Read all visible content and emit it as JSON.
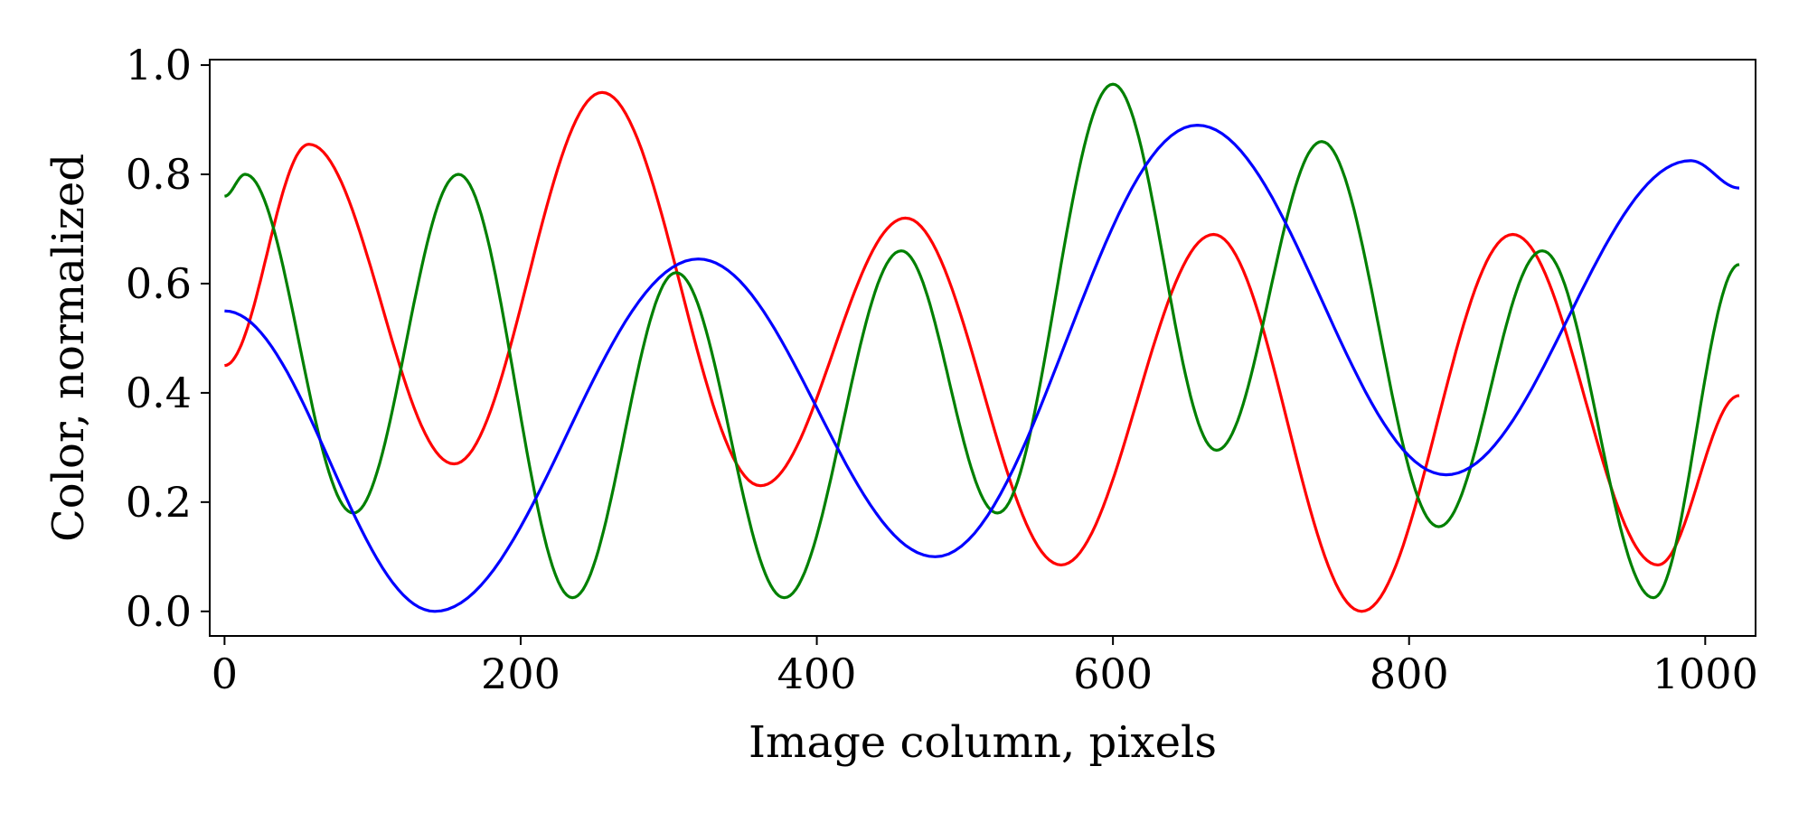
{
  "chart_data": {
    "type": "line",
    "title": "",
    "xlabel": "Image column, pixels",
    "ylabel": "Color, normalized",
    "xlim": [
      -10,
      1034
    ],
    "ylim": [
      -0.045,
      1.01
    ],
    "grid": false,
    "xticks": [
      0,
      200,
      400,
      600,
      800,
      1000
    ],
    "yticks": [
      0.0,
      0.2,
      0.4,
      0.6,
      0.8,
      1.0
    ],
    "xtick_labels": [
      "0",
      "200",
      "400",
      "600",
      "800",
      "1000"
    ],
    "ytick_labels": [
      "0.0",
      "0.2",
      "0.4",
      "0.6",
      "0.8",
      "1.0"
    ],
    "series": [
      {
        "color": "#ff0000",
        "x": [
          0,
          57,
          155,
          255,
          362,
          460,
          565,
          668,
          768,
          870,
          968,
          1023
        ],
        "y": [
          0.45,
          0.855,
          0.27,
          0.95,
          0.23,
          0.72,
          0.085,
          0.69,
          0.0,
          0.69,
          0.085,
          0.395
        ]
      },
      {
        "color": "#008000",
        "x": [
          0,
          14,
          87,
          158,
          235,
          305,
          378,
          457,
          522,
          600,
          670,
          741,
          820,
          890,
          965,
          1023
        ],
        "y": [
          0.76,
          0.8,
          0.18,
          0.8,
          0.025,
          0.62,
          0.025,
          0.66,
          0.18,
          0.965,
          0.295,
          0.86,
          0.155,
          0.66,
          0.025,
          0.635
        ]
      },
      {
        "color": "#0000ff",
        "x": [
          0,
          142,
          320,
          480,
          657,
          825,
          990,
          1023
        ],
        "y": [
          0.55,
          0.0,
          0.645,
          0.1,
          0.89,
          0.25,
          0.825,
          0.775
        ]
      }
    ]
  }
}
